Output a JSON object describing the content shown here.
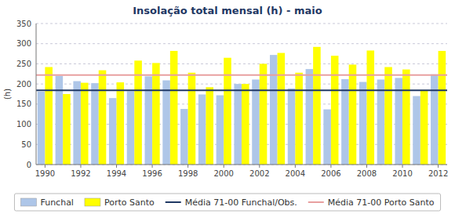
{
  "chart_data": {
    "type": "bar",
    "title": "Insolação total mensal (h) - maio",
    "ylabel": "(h)",
    "categories": [
      "1990",
      null,
      "1992",
      null,
      "1994",
      null,
      "1996",
      null,
      "1998",
      null,
      "2000",
      null,
      "2002",
      null,
      "2004",
      null,
      "2006",
      null,
      "2008",
      null,
      "2010",
      null,
      "2012"
    ],
    "series": [
      {
        "name": "Funchal",
        "color": "#aec6e8",
        "values": [
          181,
          220,
          207,
          202,
          165,
          182,
          219,
          209,
          138,
          174,
          172,
          200,
          211,
          272,
          189,
          237,
          137,
          212,
          205,
          211,
          215,
          170,
          224
        ]
      },
      {
        "name": "Porto Santo",
        "color": "#ffff00",
        "values": [
          242,
          175,
          203,
          234,
          204,
          258,
          252,
          282,
          228,
          192,
          265,
          200,
          250,
          277,
          228,
          292,
          270,
          248,
          283,
          242,
          236,
          185,
          282
        ]
      },
      {
        "name": "Média 71-00 Funchal/Obs.",
        "type": "hline",
        "color": "#1f3864",
        "value": 184
      },
      {
        "name": "Média 71-00 Porto Santo",
        "type": "hline",
        "color": "#e8a0a0",
        "value": 222
      }
    ],
    "ylim": [
      0,
      350
    ],
    "yticks": [
      0,
      50,
      100,
      150,
      200,
      250,
      300,
      350
    ],
    "grid": true,
    "legend": "bottom"
  }
}
